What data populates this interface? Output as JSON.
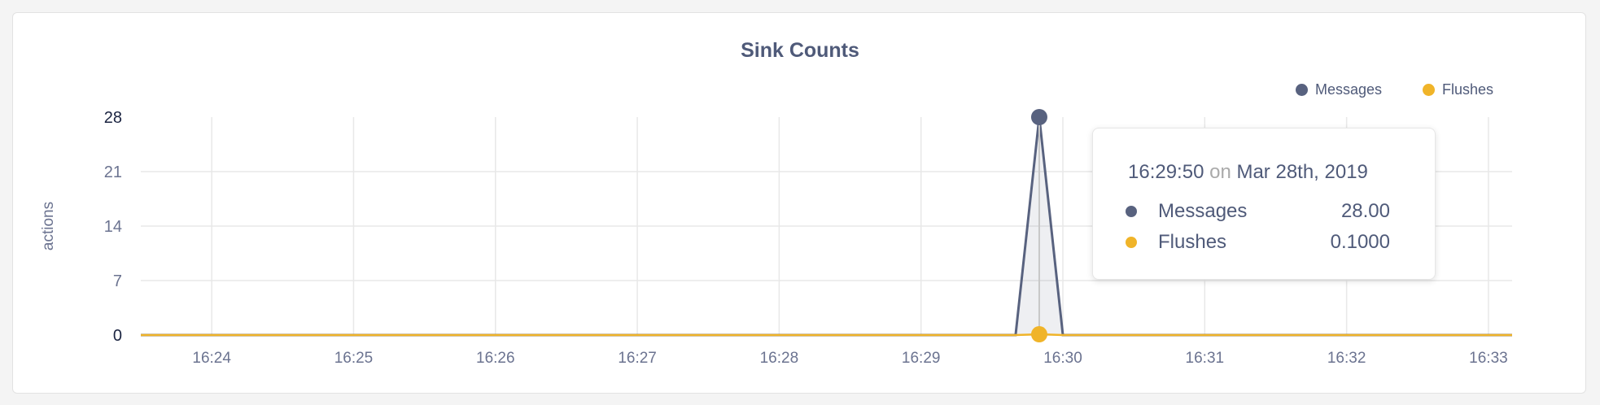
{
  "chart_data": {
    "type": "area",
    "title": "Sink Counts",
    "ylabel": "actions",
    "xlabel": "",
    "ylim": [
      0,
      28
    ],
    "y_ticks": [
      "0",
      "7",
      "14",
      "21",
      "28"
    ],
    "x_ticks": [
      "16:24",
      "16:25",
      "16:26",
      "16:27",
      "16:28",
      "16:29",
      "16:30",
      "16:31",
      "16:32",
      "16:33"
    ],
    "x_range": [
      "16:23:30",
      "16:33:10"
    ],
    "grid": true,
    "legend_position": "top-right",
    "x": [
      "16:23:30",
      "16:23:40",
      "16:23:50",
      "16:24:00",
      "16:24:10",
      "16:24:20",
      "16:24:30",
      "16:24:40",
      "16:24:50",
      "16:25:00",
      "16:25:10",
      "16:25:20",
      "16:25:30",
      "16:25:40",
      "16:25:50",
      "16:26:00",
      "16:26:10",
      "16:26:20",
      "16:26:30",
      "16:26:40",
      "16:26:50",
      "16:27:00",
      "16:27:10",
      "16:27:20",
      "16:27:30",
      "16:27:40",
      "16:27:50",
      "16:28:00",
      "16:28:10",
      "16:28:20",
      "16:28:30",
      "16:28:40",
      "16:28:50",
      "16:29:00",
      "16:29:10",
      "16:29:20",
      "16:29:30",
      "16:29:40",
      "16:29:50",
      "16:30:00",
      "16:30:10",
      "16:30:20",
      "16:30:30",
      "16:30:40",
      "16:30:50",
      "16:31:00",
      "16:31:10",
      "16:31:20",
      "16:31:30",
      "16:31:40",
      "16:31:50",
      "16:32:00",
      "16:32:10",
      "16:32:20",
      "16:32:30",
      "16:32:40",
      "16:32:50",
      "16:33:00",
      "16:33:10"
    ],
    "series": [
      {
        "name": "Messages",
        "color": "#58627f",
        "values": [
          0,
          0,
          0,
          0,
          0,
          0,
          0,
          0,
          0,
          0,
          0,
          0,
          0,
          0,
          0,
          0,
          0,
          0,
          0,
          0,
          0,
          0,
          0,
          0,
          0,
          0,
          0,
          0,
          0,
          0,
          0,
          0,
          0,
          0,
          0,
          0,
          0,
          0,
          28,
          0,
          0,
          0,
          0,
          0,
          0,
          0,
          0,
          0,
          0,
          0,
          0,
          0,
          0,
          0,
          0,
          0,
          0,
          0,
          0
        ]
      },
      {
        "name": "Flushes",
        "color": "#f0b429",
        "values": [
          0,
          0,
          0,
          0,
          0,
          0,
          0,
          0,
          0,
          0,
          0,
          0,
          0,
          0,
          0,
          0,
          0,
          0,
          0,
          0,
          0,
          0,
          0,
          0,
          0,
          0,
          0,
          0,
          0,
          0,
          0,
          0,
          0,
          0,
          0,
          0,
          0,
          0,
          0.1,
          0,
          0,
          0,
          0,
          0,
          0,
          0,
          0,
          0,
          0,
          0,
          0,
          0,
          0,
          0,
          0,
          0,
          0,
          0,
          0
        ]
      }
    ],
    "tooltip": {
      "time": "16:29:50",
      "on": "on",
      "date": "Mar 28th, 2019",
      "rows": [
        {
          "name": "Messages",
          "value": "28.00"
        },
        {
          "name": "Flushes",
          "value": "0.1000"
        }
      ]
    }
  }
}
